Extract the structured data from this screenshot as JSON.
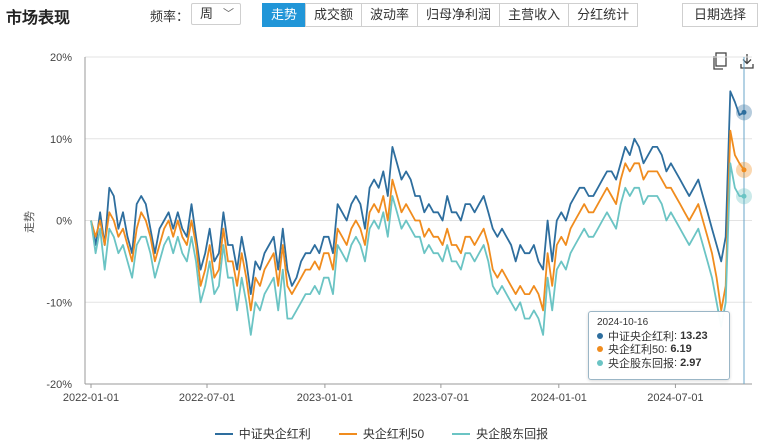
{
  "header": {
    "title": "市场表现",
    "freq_label": "频率：",
    "freq_value": "周",
    "tabs": [
      "走势",
      "成交额",
      "波动率",
      "归母净利润",
      "主营收入",
      "分红统计"
    ],
    "active_tab": 0,
    "date_button": "日期选择"
  },
  "icons": {
    "copy": "copy-icon",
    "download": "download-icon"
  },
  "tooltip": {
    "date": "2024-10-16",
    "rows": [
      {
        "name": "中证央企红利",
        "value": "13.23"
      },
      {
        "name": "央企红利50",
        "value": "6.19"
      },
      {
        "name": "央企股东回报",
        "value": "2.97"
      }
    ]
  },
  "chart_data": {
    "type": "line",
    "ylabel": "走势",
    "yticks": [
      "20%",
      "10%",
      "0%",
      "-10%",
      "-20%"
    ],
    "ylim": [
      -20,
      20
    ],
    "xticks": [
      "2022-01-01",
      "2022-07-01",
      "2023-01-01",
      "2023-07-01",
      "2024-01-01",
      "2024-07-01"
    ],
    "x_start": "2022-01-01",
    "x_end": "2024-10-16",
    "grid": "horizontal",
    "legend": "bottom-center",
    "series": [
      {
        "name": "中证央企红利",
        "color": "#2e6e9e",
        "values": [
          0,
          -3,
          1,
          -3,
          4,
          3,
          -1,
          1,
          -2,
          -4,
          2,
          3,
          2,
          -1,
          -4,
          -1,
          0,
          1,
          -1,
          1,
          -1,
          -2,
          2,
          -2,
          -6,
          -4,
          -1,
          -5,
          -4,
          1,
          -3,
          -3,
          -6,
          -2,
          -5,
          -9,
          -5,
          -6,
          -4,
          -3,
          -2,
          -6,
          -1,
          -6,
          -8,
          -7,
          -5,
          -4,
          -4,
          -3,
          -4,
          -2,
          -2,
          -4,
          2,
          1,
          0,
          2,
          3,
          2,
          -1,
          4,
          5,
          4,
          6,
          3,
          9,
          7,
          5,
          6,
          5,
          3,
          3,
          1,
          2,
          1,
          1,
          0,
          3,
          1,
          1,
          0,
          2,
          2,
          1,
          2,
          3,
          1,
          -1,
          -2,
          -1,
          -2,
          -3,
          -5,
          -3,
          -4,
          -4,
          -3,
          -5,
          -6,
          0,
          -5,
          0,
          1,
          0,
          2,
          3,
          4,
          4,
          3,
          3,
          4,
          5,
          6,
          6,
          5,
          7,
          9,
          8,
          10,
          9,
          7,
          8,
          9,
          9,
          8,
          6,
          7,
          6,
          5,
          4,
          3,
          4,
          5,
          3,
          1,
          -1,
          -3,
          -5,
          -2,
          15.8,
          14.5,
          12.9,
          13.23
        ]
      },
      {
        "name": "央企红利50",
        "color": "#f08c1e",
        "values": [
          0,
          -2,
          0,
          -3,
          1,
          0,
          -2,
          -1,
          -3,
          -5,
          -1,
          1,
          0,
          -2,
          -5,
          -3,
          -1,
          0,
          -2,
          0,
          -2,
          -3,
          0,
          -3,
          -8,
          -6,
          -3,
          -7,
          -6,
          -1,
          -5,
          -5,
          -8,
          -4,
          -7,
          -11,
          -7,
          -8,
          -6,
          -5,
          -4,
          -8,
          -3,
          -8,
          -9,
          -8,
          -7,
          -6,
          -6,
          -5,
          -6,
          -4,
          -4,
          -6,
          -1,
          -2,
          -3,
          -1,
          0,
          -1,
          -3,
          1,
          2,
          1,
          3,
          0,
          5,
          3,
          1,
          2,
          1,
          0,
          0,
          -2,
          -1,
          -2,
          -2,
          -3,
          -1,
          -3,
          -3,
          -4,
          -2,
          -2,
          -3,
          -2,
          -1,
          -3,
          -6,
          -7,
          -6,
          -7,
          -8,
          -9,
          -8,
          -9,
          -9,
          -8,
          -9,
          -11,
          -4,
          -8,
          -3,
          -2,
          -3,
          -1,
          0,
          1,
          2,
          1,
          1,
          2,
          3,
          4,
          3,
          2,
          5,
          7,
          6,
          7,
          7,
          5,
          6,
          6,
          6,
          5,
          4,
          4,
          3,
          2,
          1,
          0,
          1,
          2,
          0,
          -2,
          -4,
          -7,
          -11,
          -8,
          11,
          8,
          7,
          6.19
        ]
      },
      {
        "name": "央企股东回报",
        "color": "#6bc4c4",
        "values": [
          0,
          -4,
          -1,
          -6,
          -1,
          -2,
          -4,
          -3,
          -5,
          -7,
          -3,
          -2,
          -2,
          -4,
          -7,
          -5,
          -3,
          -2,
          -4,
          -2,
          -4,
          -5,
          -2,
          -5,
          -10,
          -8,
          -5,
          -9,
          -8,
          -3,
          -7,
          -7,
          -11,
          -7,
          -10,
          -14,
          -10,
          -11,
          -9,
          -8,
          -7,
          -11,
          -6,
          -12,
          -12,
          -11,
          -10,
          -9,
          -9,
          -8,
          -9,
          -7,
          -7,
          -9,
          -3,
          -4,
          -5,
          -3,
          -2,
          -3,
          -5,
          -1,
          0,
          -1,
          1,
          -2,
          3,
          1,
          -1,
          0,
          -1,
          -2,
          -2,
          -4,
          -3,
          -4,
          -4,
          -5,
          -3,
          -5,
          -5,
          -6,
          -4,
          -4,
          -5,
          -4,
          -3,
          -5,
          -8,
          -9,
          -8,
          -9,
          -10,
          -11,
          -10,
          -12,
          -12,
          -11,
          -12,
          -14,
          -7,
          -11,
          -6,
          -5,
          -6,
          -4,
          -3,
          -2,
          -1,
          -2,
          -2,
          -1,
          0,
          1,
          0,
          -1,
          2,
          4,
          3,
          4,
          4,
          2,
          3,
          3,
          3,
          2,
          0,
          1,
          0,
          -1,
          -2,
          -3,
          -2,
          -1,
          -3,
          -5,
          -7,
          -10,
          -13,
          -10,
          7,
          4,
          3,
          2.97
        ]
      }
    ]
  }
}
